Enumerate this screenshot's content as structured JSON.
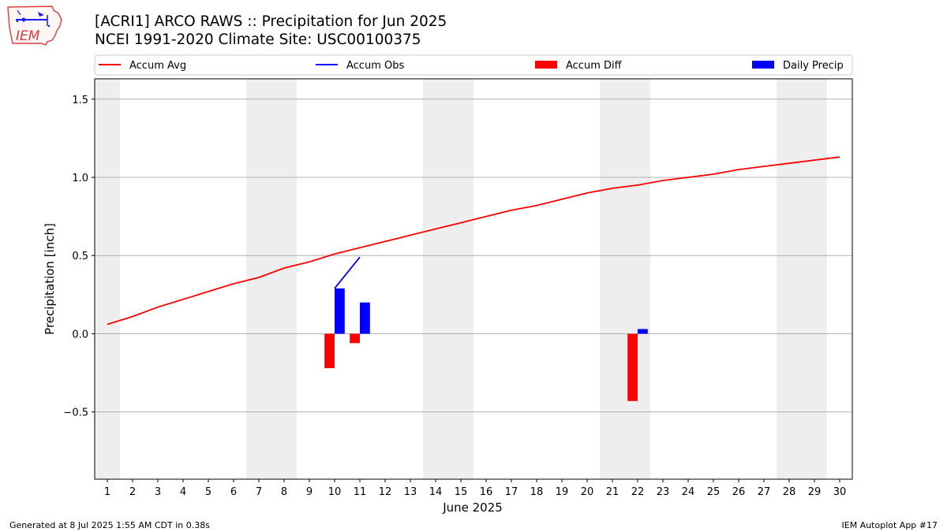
{
  "header": {
    "title_line1": "[ACRI1] ARCO RAWS :: Precipitation for Jun 2025",
    "title_line2": "NCEI 1991-2020 Climate Site: USC00100375"
  },
  "logo": {
    "text": "IEM",
    "icon": "iem-iowa-logo-icon"
  },
  "footer": {
    "left": "Generated at 8 Jul 2025 1:55 AM CDT in 0.38s",
    "right": "IEM Autoplot App #17"
  },
  "colors": {
    "avg": "#ff0000",
    "obs": "#0000ff",
    "diff": "#ff0000",
    "daily": "#0000ff",
    "weekend_band": "#eeeeee",
    "grid": "#b0b0b0"
  },
  "chart_data": {
    "type": "bar",
    "xlabel": "June 2025",
    "ylabel": "Precipitation [inch]",
    "xlim": [
      0.5,
      30.5
    ],
    "ylim": [
      -0.93,
      1.63
    ],
    "xticks": [
      1,
      2,
      3,
      4,
      5,
      6,
      7,
      8,
      9,
      10,
      11,
      12,
      13,
      14,
      15,
      16,
      17,
      18,
      19,
      20,
      21,
      22,
      23,
      24,
      25,
      26,
      27,
      28,
      29,
      30
    ],
    "yticks": [
      {
        "value": -0.5,
        "label": "−0.5"
      },
      {
        "value": 0.0,
        "label": "0.0"
      },
      {
        "value": 0.5,
        "label": "0.5"
      },
      {
        "value": 1.0,
        "label": "1.0"
      },
      {
        "value": 1.5,
        "label": "1.5"
      }
    ],
    "grid": "horizontal",
    "weekend_days": [
      1,
      7,
      8,
      14,
      15,
      21,
      22,
      28,
      29
    ],
    "legend": {
      "placement": "top",
      "entries": [
        {
          "label": "Accum Avg",
          "kind": "line",
          "color": "#ff0000"
        },
        {
          "label": "Accum Obs",
          "kind": "line",
          "color": "#0000ff"
        },
        {
          "label": "Accum Diff",
          "kind": "bar",
          "color": "#ff0000"
        },
        {
          "label": "Daily Precip",
          "kind": "bar",
          "color": "#0000ff"
        }
      ]
    },
    "series": [
      {
        "name": "Accum Avg",
        "type": "line",
        "x": [
          1,
          2,
          3,
          4,
          5,
          6,
          7,
          8,
          9,
          10,
          11,
          12,
          13,
          14,
          15,
          16,
          17,
          18,
          19,
          20,
          21,
          22,
          23,
          24,
          25,
          26,
          27,
          28,
          29,
          30
        ],
        "values": [
          0.06,
          0.11,
          0.17,
          0.22,
          0.27,
          0.32,
          0.36,
          0.42,
          0.46,
          0.51,
          0.55,
          0.59,
          0.63,
          0.67,
          0.71,
          0.75,
          0.79,
          0.82,
          0.86,
          0.9,
          0.93,
          0.95,
          0.98,
          1.0,
          1.02,
          1.05,
          1.07,
          1.09,
          1.11,
          1.13
        ]
      },
      {
        "name": "Accum Obs",
        "type": "line",
        "x": [
          10,
          11
        ],
        "values": [
          0.29,
          0.49
        ]
      },
      {
        "name": "Accum Diff",
        "type": "bar",
        "x": [
          10,
          11,
          22
        ],
        "values": [
          -0.22,
          -0.06,
          -0.43
        ]
      },
      {
        "name": "Daily Precip",
        "type": "bar",
        "x": [
          10,
          11,
          22
        ],
        "values": [
          0.29,
          0.2,
          0.03
        ]
      }
    ]
  }
}
